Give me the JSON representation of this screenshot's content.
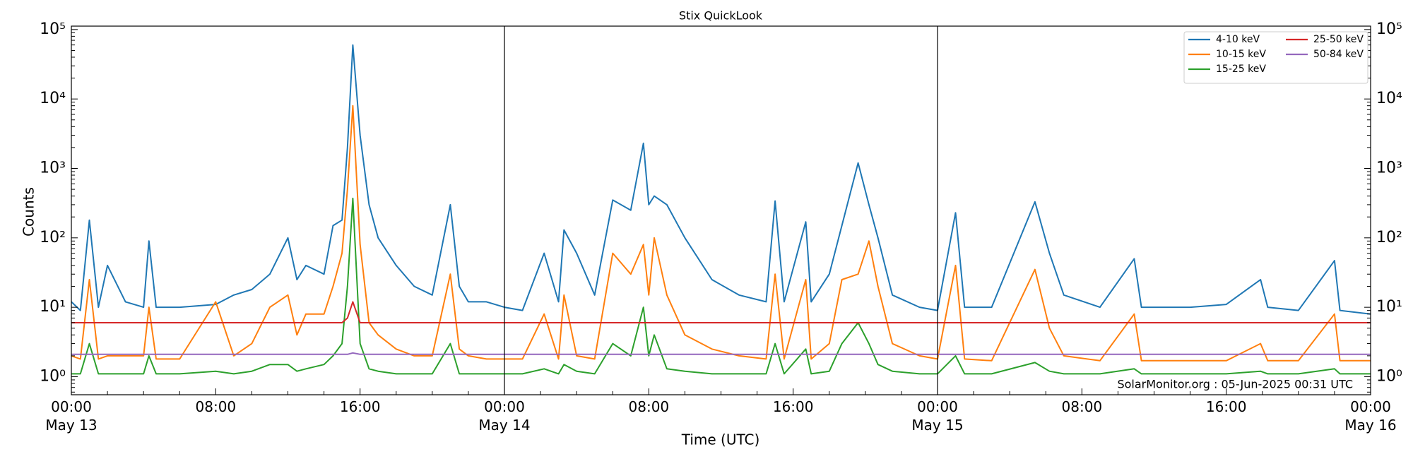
{
  "chart_data": {
    "type": "line",
    "title": "Stix QuickLook",
    "x_label": "Time (UTC)",
    "y_label": "Counts",
    "annotation": "SolarMonitor.org : 05-Jun-2025 00:31 UTC",
    "log_y": true,
    "legend": "upper right",
    "legend_columns": 2,
    "vlines": [
      24,
      48
    ],
    "xlim": [
      0,
      72
    ],
    "xticks": [
      {
        "value": 0,
        "label": "00:00\nMay 13"
      },
      {
        "value": 8,
        "label": "08:00"
      },
      {
        "value": 16,
        "label": "16:00"
      },
      {
        "value": 24,
        "label": "00:00\nMay 14"
      },
      {
        "value": 32,
        "label": "08:00"
      },
      {
        "value": 40,
        "label": "16:00"
      },
      {
        "value": 48,
        "label": "00:00\nMay 15"
      },
      {
        "value": 56,
        "label": "08:00"
      },
      {
        "value": 64,
        "label": "16:00"
      },
      {
        "value": 72,
        "label": "00:00\nMay 16"
      }
    ],
    "ylim": [
      0.55,
      112000
    ],
    "yticks": [
      {
        "value": 1,
        "label": "10⁰"
      },
      {
        "value": 10,
        "label": "10¹"
      },
      {
        "value": 100,
        "label": "10²"
      },
      {
        "value": 1000,
        "label": "10³"
      },
      {
        "value": 10000,
        "label": "10⁴"
      },
      {
        "value": 100000,
        "label": "10⁵"
      }
    ],
    "x": [
      0,
      0.5,
      1,
      1.5,
      2,
      3,
      4,
      4.3,
      4.7,
      6,
      8,
      9,
      10,
      11,
      12,
      12.5,
      13,
      14,
      14.5,
      15,
      15.3,
      15.6,
      16,
      16.5,
      17,
      18,
      19,
      20,
      21,
      21.5,
      22,
      23,
      24,
      25,
      26.2,
      27,
      27.3,
      28,
      29,
      30,
      31,
      31.7,
      32,
      32.3,
      33,
      34,
      35.5,
      37,
      38.5,
      39,
      39.5,
      40.7,
      41,
      42,
      42.7,
      43.6,
      44.2,
      44.7,
      45.5,
      47,
      48,
      49,
      49.5,
      51,
      53.4,
      54.2,
      55,
      57,
      58.9,
      59.3,
      62,
      64,
      65.9,
      66.3,
      68,
      70,
      70.3,
      72
    ],
    "series": [
      {
        "name": "4-10 keV",
        "color": "#1f77b4",
        "values": [
          12,
          9,
          180,
          10,
          40,
          12,
          10,
          90,
          10,
          10,
          11,
          15,
          18,
          30,
          100,
          25,
          40,
          30,
          150,
          180,
          2000,
          60000,
          3000,
          300,
          100,
          40,
          20,
          15,
          300,
          20,
          12,
          12,
          10,
          9,
          60,
          12,
          130,
          60,
          15,
          350,
          250,
          2300,
          300,
          400,
          300,
          100,
          25,
          15,
          12,
          340,
          12,
          170,
          12,
          30,
          150,
          1200,
          300,
          100,
          15,
          10,
          9,
          230,
          10,
          10,
          330,
          60,
          15,
          10,
          50,
          10,
          10,
          11,
          25,
          10,
          9,
          47,
          9,
          8
        ]
      },
      {
        "name": "10-15 keV",
        "color": "#ff7f0e",
        "values": [
          2,
          1.8,
          25,
          1.8,
          2,
          2,
          2,
          10,
          1.8,
          1.8,
          12,
          2,
          3,
          10,
          15,
          4,
          8,
          8,
          20,
          60,
          500,
          8000,
          80,
          6,
          4,
          2.5,
          2,
          2,
          30,
          2.5,
          2,
          1.8,
          1.8,
          1.8,
          8,
          1.8,
          15,
          2,
          1.8,
          60,
          30,
          80,
          15,
          100,
          15,
          4,
          2.5,
          2,
          1.8,
          30,
          1.8,
          25,
          1.8,
          3,
          25,
          30,
          90,
          20,
          3,
          2,
          1.8,
          40,
          1.8,
          1.7,
          35,
          5,
          2,
          1.7,
          8,
          1.7,
          1.7,
          1.7,
          3,
          1.7,
          1.7,
          8,
          1.7,
          1.7
        ]
      },
      {
        "name": "15-25 keV",
        "color": "#2ca02c",
        "values": [
          1.1,
          1.1,
          3,
          1.1,
          1.1,
          1.1,
          1.1,
          2,
          1.1,
          1.1,
          1.2,
          1.1,
          1.2,
          1.5,
          1.5,
          1.2,
          1.3,
          1.5,
          2,
          3,
          20,
          370,
          3,
          1.3,
          1.2,
          1.1,
          1.1,
          1.1,
          3,
          1.1,
          1.1,
          1.1,
          1.1,
          1.1,
          1.3,
          1.1,
          1.5,
          1.2,
          1.1,
          3,
          2,
          10,
          2,
          4,
          1.3,
          1.2,
          1.1,
          1.1,
          1.1,
          3,
          1.1,
          2.5,
          1.1,
          1.2,
          3,
          6,
          3,
          1.5,
          1.2,
          1.1,
          1.1,
          2,
          1.1,
          1.1,
          1.6,
          1.2,
          1.1,
          1.1,
          1.3,
          1.1,
          1.1,
          1.1,
          1.2,
          1.1,
          1.1,
          1.3,
          1.1,
          1.1
        ]
      },
      {
        "name": "25-50 keV",
        "color": "#d62728",
        "values": [
          6,
          6,
          6,
          6,
          6,
          6,
          6,
          6,
          6,
          6,
          6,
          6,
          6,
          6,
          6,
          6,
          6,
          6,
          6,
          6,
          7,
          12,
          6,
          6,
          6,
          6,
          6,
          6,
          6,
          6,
          6,
          6,
          6,
          6,
          6,
          6,
          6,
          6,
          6,
          6,
          6,
          6,
          6,
          6,
          6,
          6,
          6,
          6,
          6,
          6,
          6,
          6,
          6,
          6,
          6,
          6,
          6,
          6,
          6,
          6,
          6,
          6,
          6,
          6,
          6,
          6,
          6,
          6,
          6,
          6,
          6,
          6,
          6,
          6,
          6,
          6,
          6,
          6
        ]
      },
      {
        "name": "50-84 keV",
        "color": "#9467bd",
        "values": [
          2.1,
          2.1,
          2.1,
          2.1,
          2.1,
          2.1,
          2.1,
          2.1,
          2.1,
          2.1,
          2.1,
          2.1,
          2.1,
          2.1,
          2.1,
          2.1,
          2.1,
          2.1,
          2.1,
          2.1,
          2.1,
          2.2,
          2.1,
          2.1,
          2.1,
          2.1,
          2.1,
          2.1,
          2.1,
          2.1,
          2.1,
          2.1,
          2.1,
          2.1,
          2.1,
          2.1,
          2.1,
          2.1,
          2.1,
          2.1,
          2.1,
          2.1,
          2.1,
          2.1,
          2.1,
          2.1,
          2.1,
          2.1,
          2.1,
          2.1,
          2.1,
          2.1,
          2.1,
          2.1,
          2.1,
          2.1,
          2.1,
          2.1,
          2.1,
          2.1,
          2.1,
          2.1,
          2.1,
          2.1,
          2.1,
          2.1,
          2.1,
          2.1,
          2.1,
          2.1,
          2.1,
          2.1,
          2.1,
          2.1,
          2.1,
          2.1,
          2.1,
          2.1
        ]
      }
    ]
  }
}
